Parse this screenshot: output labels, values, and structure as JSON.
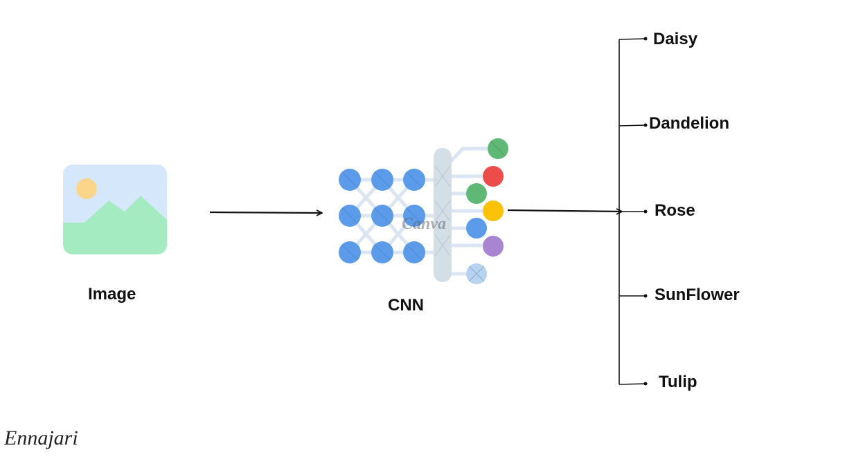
{
  "diagram": {
    "input_label": "Image",
    "model_label": "CNN",
    "classes": [
      "Daisy",
      "Dandelion",
      "Rose",
      "SunFlower",
      "Tulip"
    ],
    "watermark_text": "Canva",
    "signature_text": "Ennajari"
  },
  "colors": {
    "node_blue": "#5b9bea",
    "node_light_blue": "#b7d3f2",
    "node_green": "#5fb974",
    "node_red": "#ec4d4b",
    "node_yellow": "#fbc208",
    "node_purple": "#a984d0",
    "image_bg": "#d5e8fb",
    "image_hill": "#a5ebc1",
    "image_sun": "#fbd68a",
    "line": "#111111",
    "pillar": "#d3dee7"
  },
  "icons": {
    "input": "image-placeholder-icon",
    "model": "neural-network-icon"
  }
}
